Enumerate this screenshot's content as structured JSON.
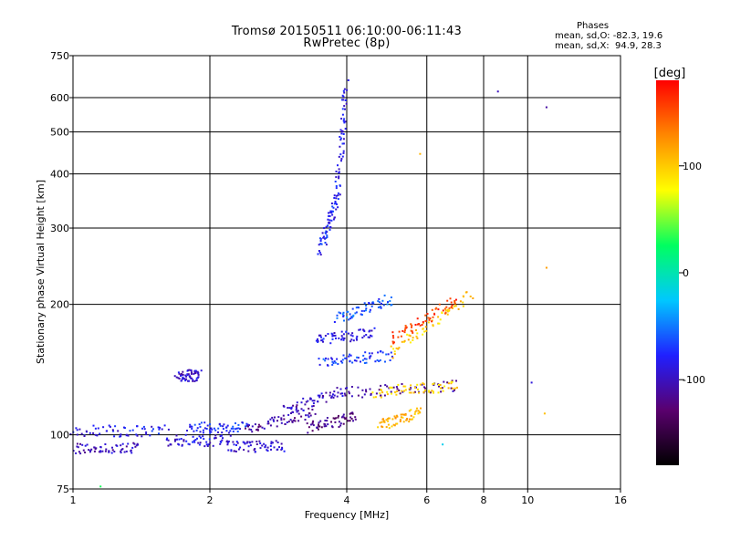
{
  "title": {
    "line1": "Tromsø 20150511 06:10:00-06:11:43",
    "line2": "RwPretec (8p)"
  },
  "stats": {
    "heading": "Phases",
    "o_mode": "mean, sd,O: -82.3, 19.6",
    "x_mode": "mean, sd,X:  94.9, 28.3"
  },
  "colorbar": {
    "unit": "[deg]",
    "ticks": [
      "100",
      "0",
      "-100"
    ],
    "tick_values": [
      100,
      0,
      -100
    ],
    "range": [
      -180,
      180
    ],
    "colormap": [
      "#000000",
      "#5a006e",
      "#2020ff",
      "#00c8ff",
      "#00ff60",
      "#ffff00",
      "#ff8800",
      "#ff0000"
    ]
  },
  "chart_data": {
    "type": "scatter",
    "title": "Tromsø 20150511 06:10:00-06:11:43 RwPretec (8p)",
    "xlabel": "Frequency [MHz]",
    "ylabel": "Stationary phase Virtual Height [km]",
    "x_scale": "log",
    "y_scale": "log",
    "xlim": [
      1,
      16
    ],
    "ylim": [
      75,
      750
    ],
    "x_ticks": [
      1,
      2,
      4,
      6,
      8,
      10,
      16
    ],
    "y_ticks": [
      75,
      100,
      200,
      300,
      400,
      500,
      600,
      750
    ],
    "grid": true,
    "color_by": "phase [deg]",
    "traces": [
      {
        "x": [
          1.0,
          1.4
        ],
        "y": [
          93,
          93
        ],
        "phase": -100
      },
      {
        "x": [
          1.0,
          1.6
        ],
        "y": [
          102,
          102
        ],
        "phase": -85
      },
      {
        "x": [
          1.6,
          2.2
        ],
        "y": [
          97,
          97
        ],
        "phase": -90
      },
      {
        "x": [
          1.8,
          2.4
        ],
        "y": [
          104,
          104
        ],
        "phase": -75
      },
      {
        "x": [
          2.2,
          2.9
        ],
        "y": [
          94,
          94
        ],
        "phase": -95
      },
      {
        "x": [
          2.4,
          3.4
        ],
        "y": [
          103,
          113
        ],
        "phase": -110
      },
      {
        "x": [
          3.3,
          4.2
        ],
        "y": [
          104,
          110
        ],
        "phase": -120
      },
      {
        "x": [
          2.9,
          4.0
        ],
        "y": [
          113,
          127
        ],
        "phase": -100
      },
      {
        "x": [
          4.0,
          7.0
        ],
        "y": [
          125,
          130
        ],
        "phase": -115
      },
      {
        "x": [
          4.6,
          7.0
        ],
        "y": [
          125,
          130
        ],
        "phase": 95
      },
      {
        "x": [
          4.7,
          5.8
        ],
        "y": [
          105,
          113
        ],
        "phase": 110
      },
      {
        "x": [
          3.5,
          5.0
        ],
        "y": [
          148,
          152
        ],
        "phase": -70
      },
      {
        "x": [
          3.4,
          4.6
        ],
        "y": [
          165,
          172
        ],
        "phase": -85
      },
      {
        "x": [
          3.8,
          5.0
        ],
        "y": [
          185,
          205
        ],
        "phase": -60
      },
      {
        "x": [
          5.0,
          7.5
        ],
        "y": [
          155,
          210
        ],
        "phase": 100
      },
      {
        "x": [
          5.0,
          7.0
        ],
        "y": [
          165,
          205
        ],
        "phase": 160
      },
      {
        "x": [
          1.7,
          1.9
        ],
        "y": [
          137,
          137
        ],
        "phase": -95
      },
      {
        "x": [
          3.5,
          3.8
        ],
        "y": [
          265,
          350
        ],
        "phase": -80
      },
      {
        "x": [
          3.8,
          4.0
        ],
        "y": [
          350,
          640
        ],
        "phase": -85
      }
    ],
    "isolated_points": [
      {
        "x": 1.15,
        "y": 76,
        "phase": 30
      },
      {
        "x": 8.6,
        "y": 620,
        "phase": -100
      },
      {
        "x": 11.0,
        "y": 570,
        "phase": -110
      },
      {
        "x": 11.0,
        "y": 243,
        "phase": 120
      },
      {
        "x": 10.2,
        "y": 132,
        "phase": -90
      },
      {
        "x": 10.9,
        "y": 112,
        "phase": 105
      },
      {
        "x": 5.8,
        "y": 445,
        "phase": 110
      },
      {
        "x": 6.5,
        "y": 95,
        "phase": -20
      }
    ]
  }
}
